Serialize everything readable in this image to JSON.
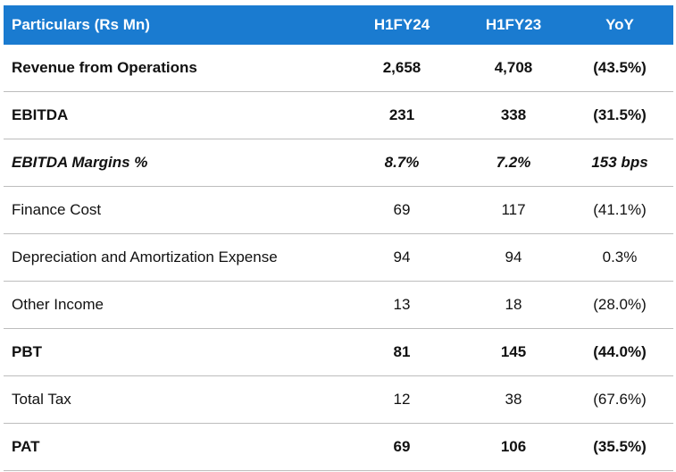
{
  "table": {
    "headers": [
      "Particulars (Rs Mn)",
      "H1FY24",
      "H1FY23",
      "YoY"
    ],
    "rows": [
      {
        "label": "Revenue from Operations",
        "h1fy24": "2,658",
        "h1fy23": "4,708",
        "yoy": "(43.5%)",
        "style": "bold"
      },
      {
        "label": "EBITDA",
        "h1fy24": "231",
        "h1fy23": "338",
        "yoy": "(31.5%)",
        "style": "bold"
      },
      {
        "label": "EBITDA Margins %",
        "h1fy24": "8.7%",
        "h1fy23": "7.2%",
        "yoy": "153 bps",
        "style": "italic-bold"
      },
      {
        "label": "Finance Cost",
        "h1fy24": "69",
        "h1fy23": "117",
        "yoy": "(41.1%)",
        "style": "normal"
      },
      {
        "label": "Depreciation and Amortization Expense",
        "h1fy24": "94",
        "h1fy23": "94",
        "yoy": "0.3%",
        "style": "normal"
      },
      {
        "label": "Other Income",
        "h1fy24": "13",
        "h1fy23": "18",
        "yoy": "(28.0%)",
        "style": "normal"
      },
      {
        "label": "PBT",
        "h1fy24": "81",
        "h1fy23": "145",
        "yoy": "(44.0%)",
        "style": "bold"
      },
      {
        "label": "Total Tax",
        "h1fy24": "12",
        "h1fy23": "38",
        "yoy": "(67.6%)",
        "style": "normal"
      },
      {
        "label": "PAT",
        "h1fy24": "69",
        "h1fy23": "106",
        "yoy": "(35.5%)",
        "style": "bold"
      }
    ]
  },
  "colors": {
    "header_bg": "#1a7bd0",
    "header_text": "#ffffff",
    "row_divider": "#bdbdbd"
  }
}
